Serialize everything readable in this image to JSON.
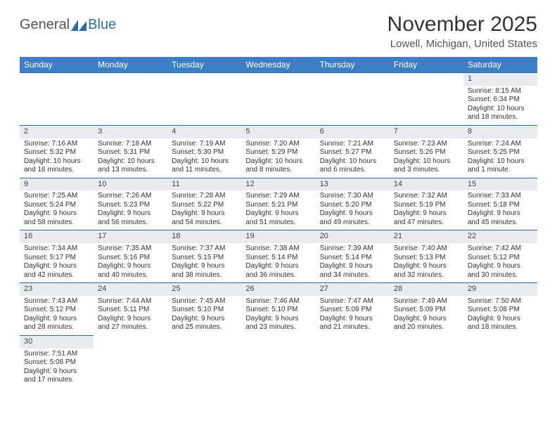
{
  "logo": {
    "text1": "General",
    "text2": "Blue"
  },
  "title": "November 2025",
  "location": "Lowell, Michigan, United States",
  "colors": {
    "header_bg": "#3b7fc4",
    "header_text": "#ffffff",
    "daynum_bg": "#e9ecef",
    "border": "#2f6aa8",
    "body_text": "#333333",
    "logo_gray": "#555555",
    "logo_blue": "#2f6aa8",
    "page_bg": "#ffffff"
  },
  "font": {
    "family": "Arial",
    "header_size": 12,
    "body_size": 10,
    "title_size": 30,
    "location_size": 15
  },
  "weekdays": [
    "Sunday",
    "Monday",
    "Tuesday",
    "Wednesday",
    "Thursday",
    "Friday",
    "Saturday"
  ],
  "weeks": [
    [
      null,
      null,
      null,
      null,
      null,
      null,
      {
        "n": "1",
        "sr": "Sunrise: 8:15 AM",
        "ss": "Sunset: 6:34 PM",
        "d1": "Daylight: 10 hours",
        "d2": "and 18 minutes."
      }
    ],
    [
      {
        "n": "2",
        "sr": "Sunrise: 7:16 AM",
        "ss": "Sunset: 5:32 PM",
        "d1": "Daylight: 10 hours",
        "d2": "and 16 minutes."
      },
      {
        "n": "3",
        "sr": "Sunrise: 7:18 AM",
        "ss": "Sunset: 5:31 PM",
        "d1": "Daylight: 10 hours",
        "d2": "and 13 minutes."
      },
      {
        "n": "4",
        "sr": "Sunrise: 7:19 AM",
        "ss": "Sunset: 5:30 PM",
        "d1": "Daylight: 10 hours",
        "d2": "and 11 minutes."
      },
      {
        "n": "5",
        "sr": "Sunrise: 7:20 AM",
        "ss": "Sunset: 5:29 PM",
        "d1": "Daylight: 10 hours",
        "d2": "and 8 minutes."
      },
      {
        "n": "6",
        "sr": "Sunrise: 7:21 AM",
        "ss": "Sunset: 5:27 PM",
        "d1": "Daylight: 10 hours",
        "d2": "and 6 minutes."
      },
      {
        "n": "7",
        "sr": "Sunrise: 7:23 AM",
        "ss": "Sunset: 5:26 PM",
        "d1": "Daylight: 10 hours",
        "d2": "and 3 minutes."
      },
      {
        "n": "8",
        "sr": "Sunrise: 7:24 AM",
        "ss": "Sunset: 5:25 PM",
        "d1": "Daylight: 10 hours",
        "d2": "and 1 minute."
      }
    ],
    [
      {
        "n": "9",
        "sr": "Sunrise: 7:25 AM",
        "ss": "Sunset: 5:24 PM",
        "d1": "Daylight: 9 hours",
        "d2": "and 58 minutes."
      },
      {
        "n": "10",
        "sr": "Sunrise: 7:26 AM",
        "ss": "Sunset: 5:23 PM",
        "d1": "Daylight: 9 hours",
        "d2": "and 56 minutes."
      },
      {
        "n": "11",
        "sr": "Sunrise: 7:28 AM",
        "ss": "Sunset: 5:22 PM",
        "d1": "Daylight: 9 hours",
        "d2": "and 54 minutes."
      },
      {
        "n": "12",
        "sr": "Sunrise: 7:29 AM",
        "ss": "Sunset: 5:21 PM",
        "d1": "Daylight: 9 hours",
        "d2": "and 51 minutes."
      },
      {
        "n": "13",
        "sr": "Sunrise: 7:30 AM",
        "ss": "Sunset: 5:20 PM",
        "d1": "Daylight: 9 hours",
        "d2": "and 49 minutes."
      },
      {
        "n": "14",
        "sr": "Sunrise: 7:32 AM",
        "ss": "Sunset: 5:19 PM",
        "d1": "Daylight: 9 hours",
        "d2": "and 47 minutes."
      },
      {
        "n": "15",
        "sr": "Sunrise: 7:33 AM",
        "ss": "Sunset: 5:18 PM",
        "d1": "Daylight: 9 hours",
        "d2": "and 45 minutes."
      }
    ],
    [
      {
        "n": "16",
        "sr": "Sunrise: 7:34 AM",
        "ss": "Sunset: 5:17 PM",
        "d1": "Daylight: 9 hours",
        "d2": "and 42 minutes."
      },
      {
        "n": "17",
        "sr": "Sunrise: 7:35 AM",
        "ss": "Sunset: 5:16 PM",
        "d1": "Daylight: 9 hours",
        "d2": "and 40 minutes."
      },
      {
        "n": "18",
        "sr": "Sunrise: 7:37 AM",
        "ss": "Sunset: 5:15 PM",
        "d1": "Daylight: 9 hours",
        "d2": "and 38 minutes."
      },
      {
        "n": "19",
        "sr": "Sunrise: 7:38 AM",
        "ss": "Sunset: 5:14 PM",
        "d1": "Daylight: 9 hours",
        "d2": "and 36 minutes."
      },
      {
        "n": "20",
        "sr": "Sunrise: 7:39 AM",
        "ss": "Sunset: 5:14 PM",
        "d1": "Daylight: 9 hours",
        "d2": "and 34 minutes."
      },
      {
        "n": "21",
        "sr": "Sunrise: 7:40 AM",
        "ss": "Sunset: 5:13 PM",
        "d1": "Daylight: 9 hours",
        "d2": "and 32 minutes."
      },
      {
        "n": "22",
        "sr": "Sunrise: 7:42 AM",
        "ss": "Sunset: 5:12 PM",
        "d1": "Daylight: 9 hours",
        "d2": "and 30 minutes."
      }
    ],
    [
      {
        "n": "23",
        "sr": "Sunrise: 7:43 AM",
        "ss": "Sunset: 5:12 PM",
        "d1": "Daylight: 9 hours",
        "d2": "and 28 minutes."
      },
      {
        "n": "24",
        "sr": "Sunrise: 7:44 AM",
        "ss": "Sunset: 5:11 PM",
        "d1": "Daylight: 9 hours",
        "d2": "and 27 minutes."
      },
      {
        "n": "25",
        "sr": "Sunrise: 7:45 AM",
        "ss": "Sunset: 5:10 PM",
        "d1": "Daylight: 9 hours",
        "d2": "and 25 minutes."
      },
      {
        "n": "26",
        "sr": "Sunrise: 7:46 AM",
        "ss": "Sunset: 5:10 PM",
        "d1": "Daylight: 9 hours",
        "d2": "and 23 minutes."
      },
      {
        "n": "27",
        "sr": "Sunrise: 7:47 AM",
        "ss": "Sunset: 5:09 PM",
        "d1": "Daylight: 9 hours",
        "d2": "and 21 minutes."
      },
      {
        "n": "28",
        "sr": "Sunrise: 7:49 AM",
        "ss": "Sunset: 5:09 PM",
        "d1": "Daylight: 9 hours",
        "d2": "and 20 minutes."
      },
      {
        "n": "29",
        "sr": "Sunrise: 7:50 AM",
        "ss": "Sunset: 5:08 PM",
        "d1": "Daylight: 9 hours",
        "d2": "and 18 minutes."
      }
    ],
    [
      {
        "n": "30",
        "sr": "Sunrise: 7:51 AM",
        "ss": "Sunset: 5:08 PM",
        "d1": "Daylight: 9 hours",
        "d2": "and 17 minutes."
      },
      null,
      null,
      null,
      null,
      null,
      null
    ]
  ]
}
